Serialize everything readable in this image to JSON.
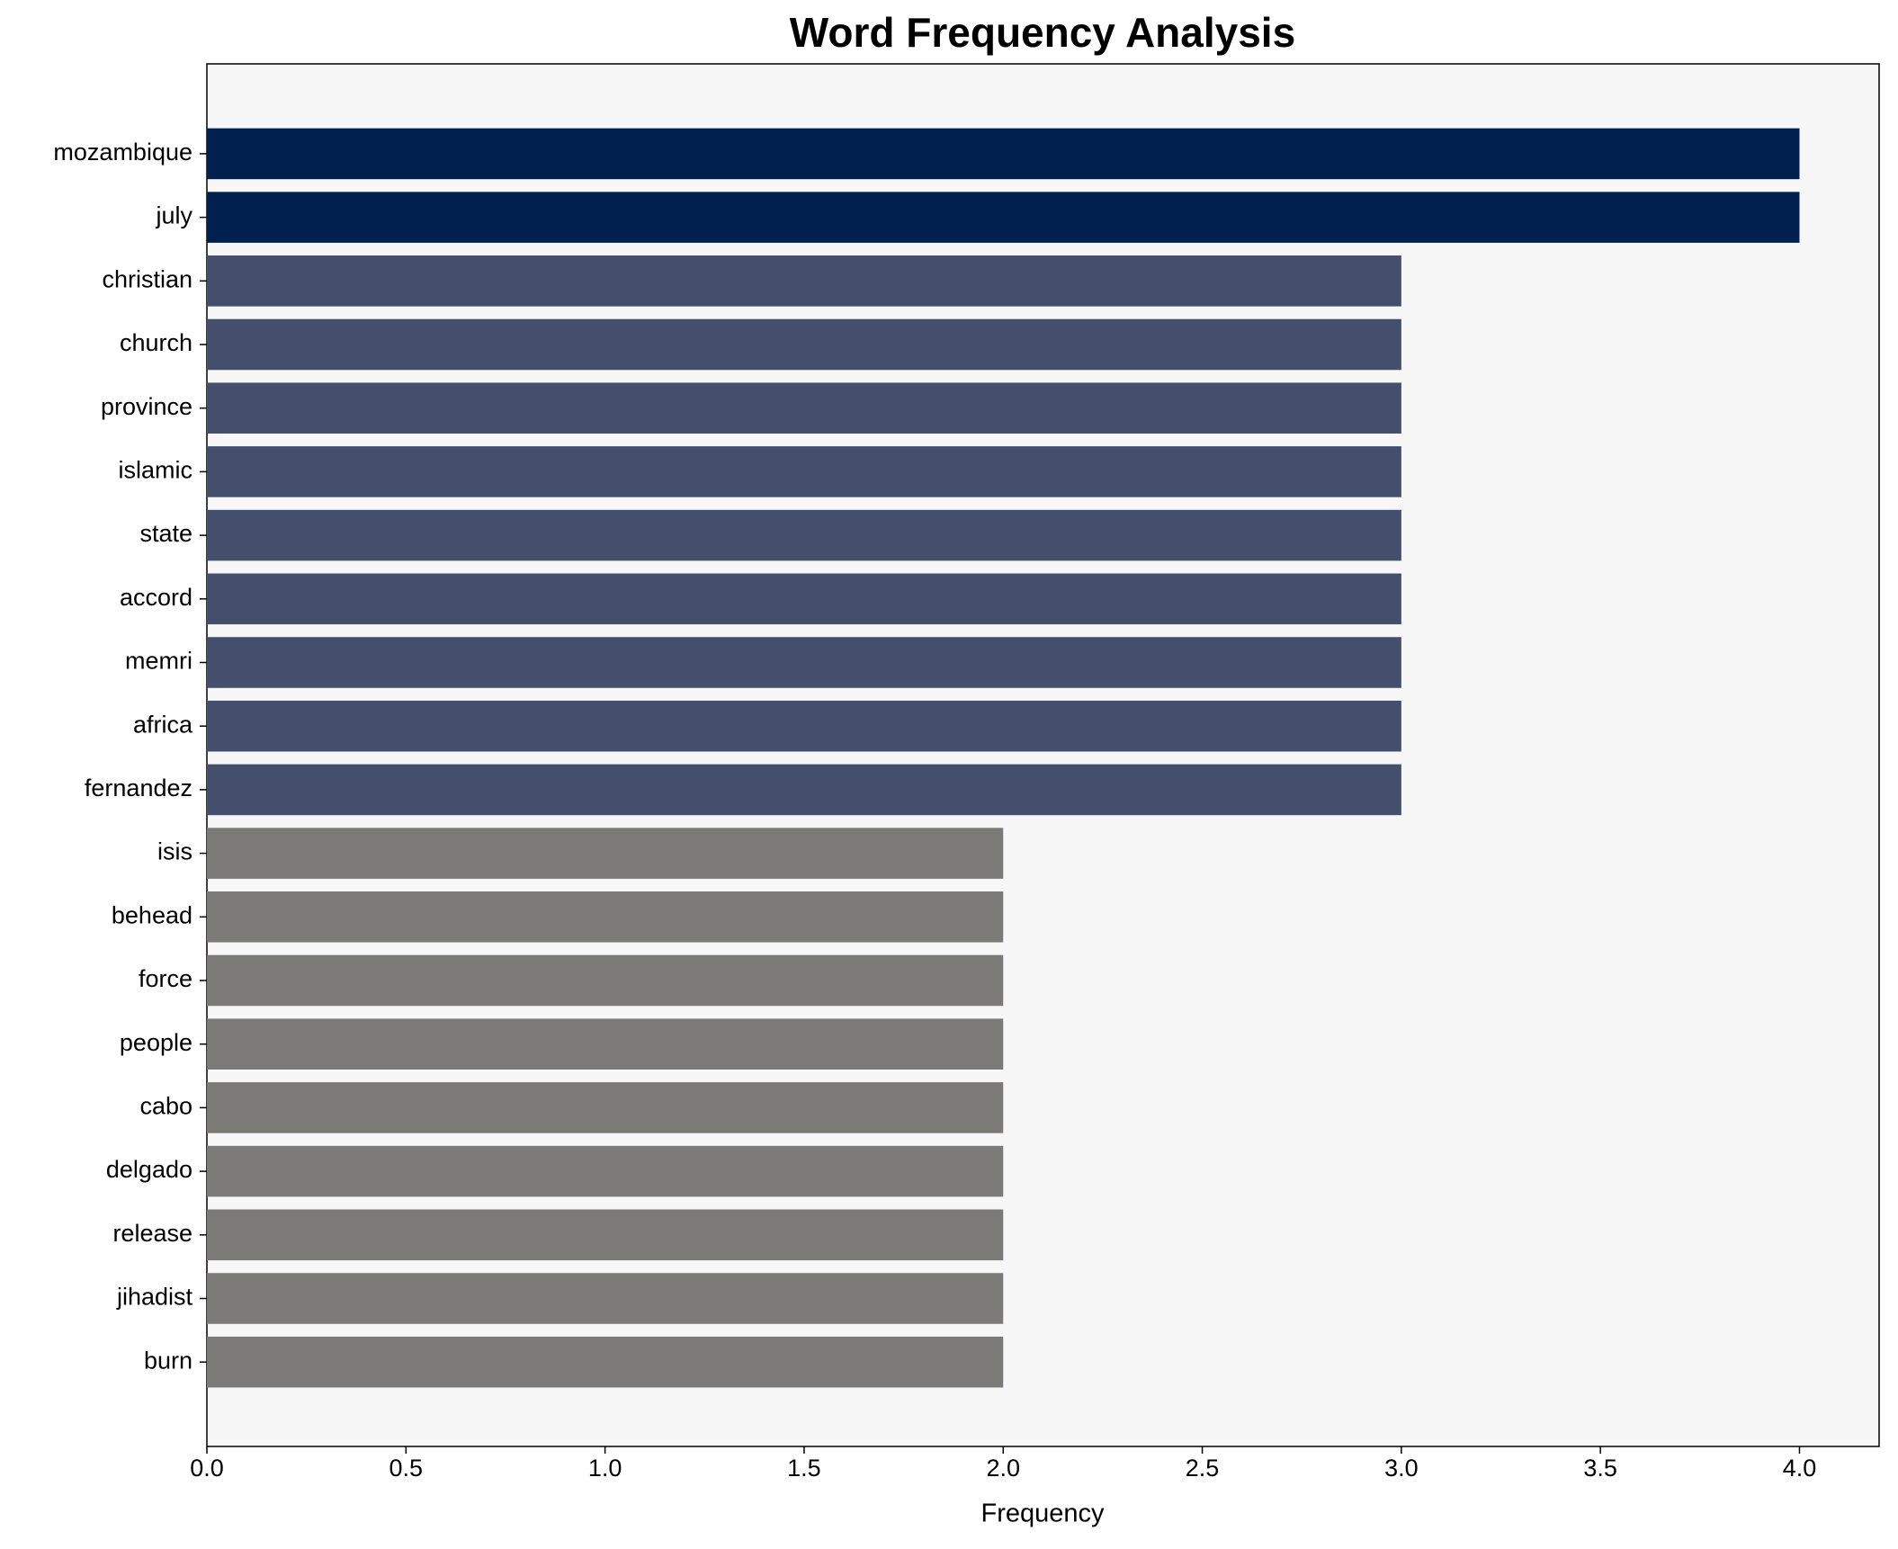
{
  "chart_data": {
    "type": "barh",
    "title": "Word Frequency Analysis",
    "xlabel": "Frequency",
    "categories": [
      "mozambique",
      "july",
      "christian",
      "church",
      "province",
      "islamic",
      "state",
      "accord",
      "memri",
      "africa",
      "fernandez",
      "isis",
      "behead",
      "force",
      "people",
      "cabo",
      "delgado",
      "release",
      "jihadist",
      "burn"
    ],
    "values": [
      4,
      4,
      3,
      3,
      3,
      3,
      3,
      3,
      3,
      3,
      3,
      2,
      2,
      2,
      2,
      2,
      2,
      2,
      2,
      2
    ],
    "colors": [
      "#00214f",
      "#00214f",
      "#434f6d",
      "#434f6d",
      "#434f6d",
      "#434f6d",
      "#434f6d",
      "#434f6d",
      "#434f6d",
      "#434f6d",
      "#434f6d",
      "#7b7a76",
      "#7b7a76",
      "#7b7a76",
      "#7b7a76",
      "#7b7a76",
      "#7b7a76",
      "#7b7a76",
      "#7b7a76",
      "#7b7a76"
    ],
    "xlim": [
      0,
      4.2
    ],
    "xticks": [
      {
        "value": 0,
        "label": "0.0"
      },
      {
        "value": 0.5,
        "label": "0.5"
      },
      {
        "value": 1,
        "label": "1.0"
      },
      {
        "value": 1.5,
        "label": "1.5"
      },
      {
        "value": 2,
        "label": "2.0"
      },
      {
        "value": 2.5,
        "label": "2.5"
      },
      {
        "value": 3,
        "label": "3.0"
      },
      {
        "value": 3.5,
        "label": "3.5"
      },
      {
        "value": 4,
        "label": "4.0"
      }
    ],
    "background": "#f7f7f7"
  }
}
